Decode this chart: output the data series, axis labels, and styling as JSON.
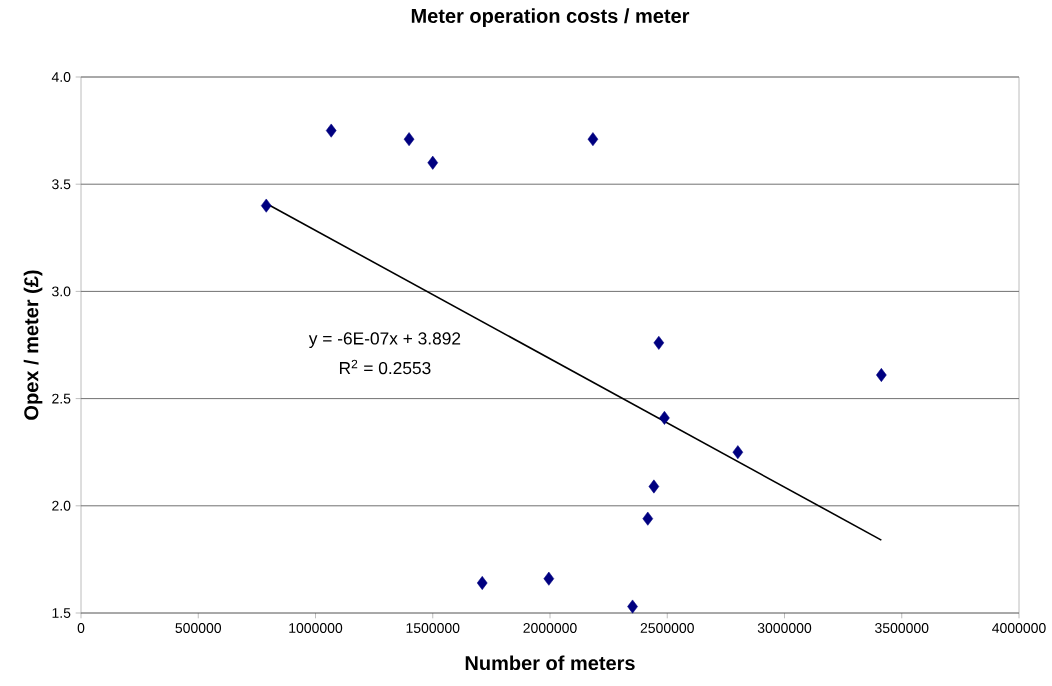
{
  "chart_data": {
    "type": "scatter",
    "title": "Meter operation costs / meter",
    "xlabel": "Number of meters",
    "ylabel": "Opex / meter (£)",
    "xlim": [
      0,
      4000000
    ],
    "xticks": [
      0,
      500000,
      1000000,
      1500000,
      2000000,
      2500000,
      3000000,
      3500000,
      4000000
    ],
    "ylim": [
      1.5,
      4.0
    ],
    "yticks": [
      1.5,
      {
        "value": 2.0,
        "label": "2.0"
      },
      2.5,
      {
        "value": 3.0,
        "label": "3.0"
      },
      3.5,
      {
        "value": 4.0,
        "label": "4.0"
      }
    ],
    "grid": "y",
    "marker": "diamond",
    "series": [
      {
        "color": "#000080",
        "x": [
          790000,
          1067000,
          1399000,
          1500000,
          2183000,
          2464000,
          3413000,
          2488000,
          2801000,
          2443000,
          2417000,
          1995000,
          2352000,
          1711000
        ],
        "values": [
          3.4,
          3.75,
          3.71,
          3.6,
          3.71,
          2.76,
          2.61,
          2.41,
          2.25,
          2.09,
          1.94,
          1.66,
          1.53,
          1.64
        ]
      },
      {
        "type": "line",
        "color": "#000000",
        "marker": "none",
        "x": [
          790000,
          3413000
        ],
        "values": [
          3.41,
          1.84
        ]
      }
    ],
    "annotations": [
      "y = -6E-07x + 3.892",
      "R$^{2}$ = 0.2553"
    ]
  }
}
